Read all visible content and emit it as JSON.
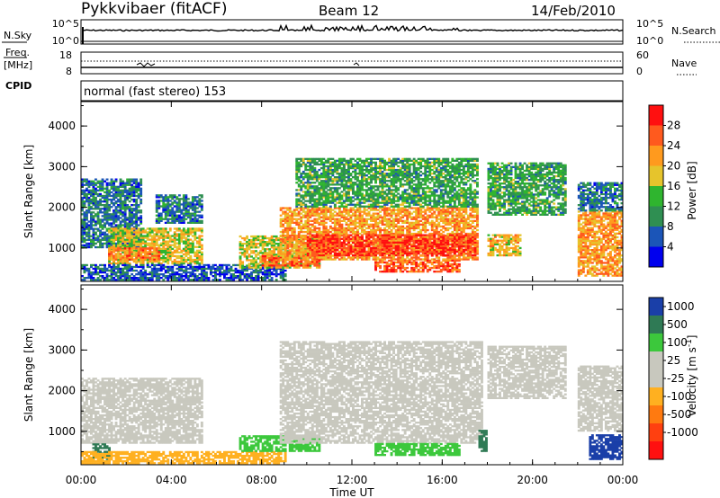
{
  "header": {
    "station": "Pykkvibaer (fitACF)",
    "beam": "Beam 12",
    "date": "14/Feb/2010"
  },
  "noise_panel": {
    "left_label": "N.Sky",
    "left_ticks": [
      "10^5",
      "10^0"
    ],
    "right_label": "N.Search",
    "right_ticks": [
      "10^5",
      "10^0"
    ]
  },
  "freq_panel": {
    "left_label_1": "Freq.",
    "left_label_2": "[MHz]",
    "left_ticks": [
      "18",
      "8"
    ],
    "right_label": "Nave",
    "right_ticks": [
      "60",
      "0"
    ],
    "cpid_label": "CPID",
    "mode_text": "normal (fast stereo) 153"
  },
  "x_axis": {
    "label": "Time UT",
    "ticks": [
      "00:00",
      "04:00",
      "08:00",
      "12:00",
      "16:00",
      "20:00",
      "00:00"
    ]
  },
  "y_axis": {
    "label": "Slant Range [km]",
    "ticks": [
      "4000",
      "3000",
      "2000",
      "1000"
    ]
  },
  "power_scale": {
    "title": "Power [dB]",
    "ticks": [
      "28",
      "24",
      "20",
      "16",
      "12",
      "8",
      "4"
    ],
    "colors": [
      "#0000ee",
      "#1b55b8",
      "#2f8f52",
      "#2fb52f",
      "#e6c42c",
      "#ff9a1e",
      "#ff5a1e",
      "#ff1010"
    ]
  },
  "velocity_scale": {
    "title": "Velocity [m s^-1]",
    "ticks": [
      "1000",
      "500",
      "100",
      "25",
      "-25",
      "-100",
      "-500",
      "-1000"
    ],
    "colors": [
      "#1a3fa8",
      "#2f7a55",
      "#3cc83c",
      "#c8c8be",
      "#c8c8be",
      "#ffb020",
      "#ff7a10",
      "#ff4010",
      "#ff1010"
    ]
  },
  "chart_data": [
    {
      "type": "heatmap",
      "title": "Power [dB]",
      "xlabel": "Time UT",
      "ylabel": "Slant Range [km]",
      "xlim": [
        0,
        24
      ],
      "ylim": [
        180,
        4600
      ],
      "color_range": [
        0,
        32
      ],
      "regions": [
        {
          "t0": 0.0,
          "t1": 2.7,
          "r0": 1000,
          "r1": 2700,
          "val": 8
        },
        {
          "t0": 1.2,
          "t1": 5.3,
          "r0": 600,
          "r1": 1500,
          "val": 18
        },
        {
          "t0": 1.2,
          "t1": 3.5,
          "r0": 700,
          "r1": 1000,
          "val": 24
        },
        {
          "t0": 3.3,
          "t1": 5.3,
          "r0": 1600,
          "r1": 2300,
          "val": 8
        },
        {
          "t0": 0.0,
          "t1": 9.0,
          "r0": 200,
          "r1": 600,
          "val": 6
        },
        {
          "t0": 7.0,
          "t1": 10.5,
          "r0": 500,
          "r1": 1300,
          "val": 18
        },
        {
          "t0": 8.0,
          "t1": 10.5,
          "r0": 550,
          "r1": 800,
          "val": 26
        },
        {
          "t0": 8.8,
          "t1": 17.5,
          "r0": 700,
          "r1": 2000,
          "val": 22
        },
        {
          "t0": 10.0,
          "t1": 17.5,
          "r0": 800,
          "r1": 1300,
          "val": 28
        },
        {
          "t0": 9.5,
          "t1": 17.5,
          "r0": 2000,
          "r1": 3200,
          "val": 12
        },
        {
          "t0": 13.0,
          "t1": 16.8,
          "r0": 400,
          "r1": 700,
          "val": 26
        },
        {
          "t0": 18.0,
          "t1": 21.5,
          "r0": 1800,
          "r1": 3100,
          "val": 12
        },
        {
          "t0": 18.0,
          "t1": 19.5,
          "r0": 800,
          "r1": 1300,
          "val": 20
        },
        {
          "t0": 22.0,
          "t1": 24.0,
          "r0": 300,
          "r1": 1900,
          "val": 22
        },
        {
          "t0": 22.0,
          "t1": 24.0,
          "r0": 1900,
          "r1": 2600,
          "val": 8
        }
      ]
    },
    {
      "type": "heatmap",
      "title": "Velocity [m s^-1]",
      "xlabel": "Time UT",
      "ylabel": "Slant Range [km]",
      "xlim": [
        0,
        24
      ],
      "ylim": [
        180,
        4600
      ],
      "regions": [
        {
          "t0": 0.0,
          "t1": 5.3,
          "r0": 700,
          "r1": 2300,
          "val": 0
        },
        {
          "t0": 0.5,
          "t1": 1.3,
          "r0": 300,
          "r1": 700,
          "val": 600
        },
        {
          "t0": 0.0,
          "t1": 9.0,
          "r0": 200,
          "r1": 500,
          "val": -100
        },
        {
          "t0": 7.0,
          "t1": 10.5,
          "r0": 500,
          "r1": 900,
          "val": 150
        },
        {
          "t0": 8.8,
          "t1": 17.8,
          "r0": 700,
          "r1": 3200,
          "val": 0
        },
        {
          "t0": 13.0,
          "t1": 16.8,
          "r0": 400,
          "r1": 700,
          "val": 150
        },
        {
          "t0": 17.6,
          "t1": 18.0,
          "r0": 500,
          "r1": 1000,
          "val": 500
        },
        {
          "t0": 18.0,
          "t1": 21.5,
          "r0": 1800,
          "r1": 3100,
          "val": 0
        },
        {
          "t0": 22.0,
          "t1": 24.0,
          "r0": 1000,
          "r1": 2600,
          "val": 0
        },
        {
          "t0": 22.5,
          "t1": 24.0,
          "r0": 300,
          "r1": 900,
          "val": 900
        }
      ]
    }
  ]
}
